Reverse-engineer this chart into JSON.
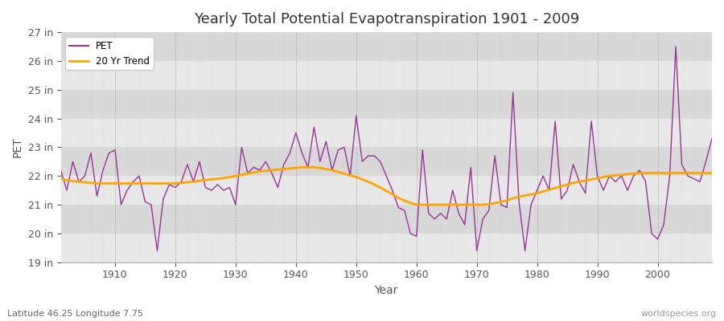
{
  "title": "Yearly Total Potential Evapotranspiration 1901 - 2009",
  "xlabel": "Year",
  "ylabel": "PET",
  "subtitle": "Latitude 46.25 Longitude 7.75",
  "watermark": "worldspecies.org",
  "pet_color": "#993399",
  "trend_color": "#FFA500",
  "bg_color": "#FFFFFF",
  "band_color_odd": "#E8E8E8",
  "band_color_even": "#D8D8D8",
  "ylim_min": 19,
  "ylim_max": 27,
  "ytick_labels": [
    "19 in",
    "20 in",
    "21 in",
    "22 in",
    "23 in",
    "24 in",
    "25 in",
    "26 in",
    "27 in"
  ],
  "ytick_values": [
    19,
    20,
    21,
    22,
    23,
    24,
    25,
    26,
    27
  ],
  "years": [
    1901,
    1902,
    1903,
    1904,
    1905,
    1906,
    1907,
    1908,
    1909,
    1910,
    1911,
    1912,
    1913,
    1914,
    1915,
    1916,
    1917,
    1918,
    1919,
    1920,
    1921,
    1922,
    1923,
    1924,
    1925,
    1926,
    1927,
    1928,
    1929,
    1930,
    1931,
    1932,
    1933,
    1934,
    1935,
    1936,
    1937,
    1938,
    1939,
    1940,
    1941,
    1942,
    1943,
    1944,
    1945,
    1946,
    1947,
    1948,
    1949,
    1950,
    1951,
    1952,
    1953,
    1954,
    1955,
    1956,
    1957,
    1958,
    1959,
    1960,
    1961,
    1962,
    1963,
    1964,
    1965,
    1966,
    1967,
    1968,
    1969,
    1970,
    1971,
    1972,
    1973,
    1974,
    1975,
    1976,
    1977,
    1978,
    1979,
    1980,
    1981,
    1982,
    1983,
    1984,
    1985,
    1986,
    1987,
    1988,
    1989,
    1990,
    1991,
    1992,
    1993,
    1994,
    1995,
    1996,
    1997,
    1998,
    1999,
    2000,
    2001,
    2002,
    2003,
    2004,
    2005,
    2006,
    2007,
    2008,
    2009
  ],
  "pet_values": [
    22.2,
    21.5,
    22.5,
    21.8,
    22.0,
    22.8,
    21.3,
    22.2,
    22.8,
    22.9,
    21.0,
    21.5,
    21.8,
    22.0,
    21.1,
    21.0,
    19.4,
    21.2,
    21.7,
    21.6,
    21.8,
    22.4,
    21.8,
    22.5,
    21.6,
    21.5,
    21.7,
    21.5,
    21.6,
    21.0,
    23.0,
    22.1,
    22.3,
    22.2,
    22.5,
    22.1,
    21.6,
    22.4,
    22.8,
    23.5,
    22.8,
    22.3,
    23.7,
    22.5,
    23.2,
    22.2,
    22.9,
    23.0,
    22.0,
    24.1,
    22.5,
    22.7,
    22.7,
    22.5,
    22.0,
    21.5,
    20.9,
    20.8,
    20.0,
    19.9,
    22.9,
    20.7,
    20.5,
    20.7,
    20.5,
    21.5,
    20.7,
    20.3,
    22.3,
    19.4,
    20.5,
    20.8,
    22.7,
    21.0,
    20.9,
    24.9,
    21.1,
    19.4,
    21.0,
    21.5,
    22.0,
    21.5,
    23.9,
    21.2,
    21.5,
    22.4,
    21.8,
    21.4,
    23.9,
    22.0,
    21.5,
    22.0,
    21.8,
    22.0,
    21.5,
    22.0,
    22.2,
    21.8,
    20.0,
    19.8,
    20.3,
    22.0,
    26.5,
    22.4,
    22.0,
    21.9,
    21.8,
    22.5,
    23.3
  ],
  "trend_years": [
    1901,
    1902,
    1903,
    1904,
    1905,
    1906,
    1907,
    1908,
    1909,
    1910,
    1911,
    1912,
    1913,
    1914,
    1915,
    1916,
    1917,
    1918,
    1919,
    1920,
    1921,
    1922,
    1923,
    1924,
    1925,
    1926,
    1927,
    1928,
    1929,
    1930,
    1931,
    1932,
    1933,
    1934,
    1935,
    1936,
    1937,
    1938,
    1939,
    1940,
    1941,
    1942,
    1943,
    1944,
    1945,
    1946,
    1947,
    1948,
    1949,
    1950,
    1951,
    1952,
    1953,
    1954,
    1955,
    1956,
    1957,
    1958,
    1959,
    1960,
    1961,
    1962,
    1963,
    1964,
    1965,
    1966,
    1967,
    1968,
    1969,
    1970,
    1971,
    1972,
    1973,
    1974,
    1975,
    1976,
    1977,
    1978,
    1979,
    1980,
    1981,
    1982,
    1983,
    1984,
    1985,
    1986,
    1987,
    1988,
    1989,
    1990,
    1991,
    1992,
    1993,
    1994,
    1995,
    1996,
    1997,
    1998,
    1999,
    2000,
    2001,
    2002,
    2003,
    2004,
    2005,
    2006,
    2007,
    2008,
    2009
  ],
  "trend_values": [
    21.9,
    21.85,
    21.82,
    21.8,
    21.78,
    21.76,
    21.74,
    21.74,
    21.74,
    21.74,
    21.74,
    21.74,
    21.74,
    21.74,
    21.74,
    21.74,
    21.74,
    21.74,
    21.74,
    21.74,
    21.76,
    21.78,
    21.8,
    21.83,
    21.86,
    21.88,
    21.9,
    21.93,
    21.96,
    22.0,
    22.04,
    22.08,
    22.12,
    22.16,
    22.18,
    22.2,
    22.22,
    22.24,
    22.26,
    22.28,
    22.3,
    22.3,
    22.3,
    22.28,
    22.24,
    22.2,
    22.14,
    22.08,
    22.02,
    21.96,
    21.88,
    21.8,
    21.7,
    21.6,
    21.48,
    21.36,
    21.24,
    21.14,
    21.06,
    21.0,
    21.0,
    21.0,
    21.0,
    21.0,
    21.0,
    21.0,
    21.0,
    21.0,
    21.0,
    21.0,
    21.0,
    21.02,
    21.06,
    21.1,
    21.15,
    21.22,
    21.28,
    21.32,
    21.36,
    21.4,
    21.46,
    21.52,
    21.58,
    21.64,
    21.7,
    21.76,
    21.8,
    21.84,
    21.88,
    21.92,
    21.96,
    22.0,
    22.02,
    22.04,
    22.06,
    22.08,
    22.1,
    22.1,
    22.1,
    22.1,
    22.1,
    22.1,
    22.1,
    22.1,
    22.1,
    22.1,
    22.1,
    22.1,
    22.1
  ]
}
